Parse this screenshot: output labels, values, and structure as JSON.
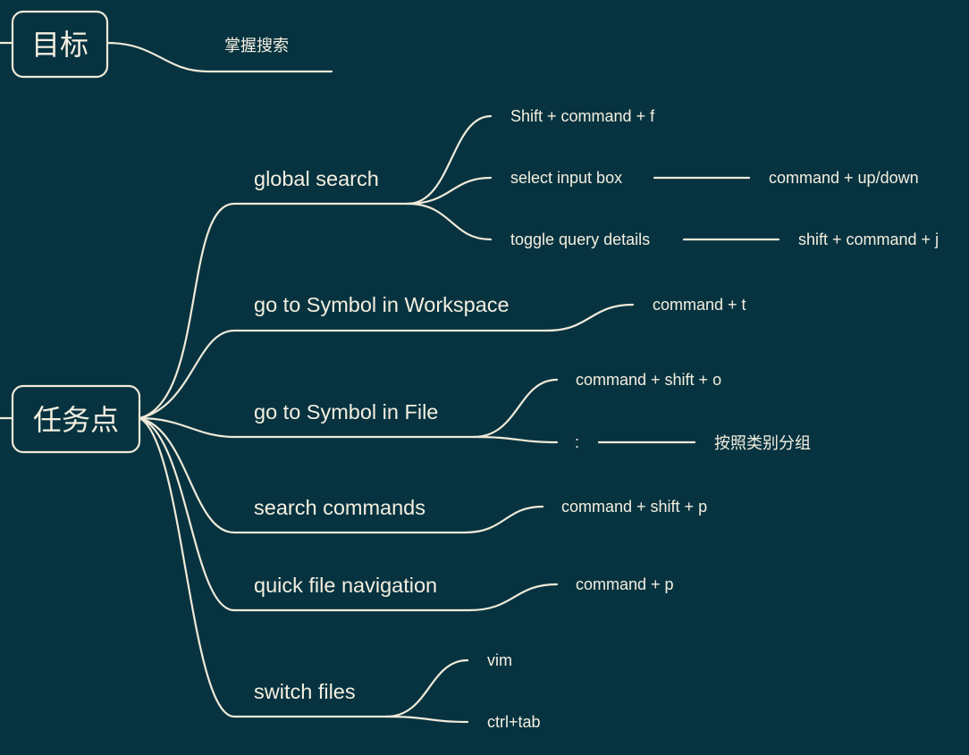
{
  "goal": {
    "root": "目标",
    "branch": "掌握搜索"
  },
  "tasks": {
    "root": "任务点",
    "global_search": {
      "label": "global search",
      "shift_command_f": "Shift + command + f",
      "select_input_box": "select input box",
      "select_input_box_shortcut": "command + up/down",
      "toggle_query_details": "toggle query details",
      "toggle_query_details_shortcut": "shift + command + j"
    },
    "symbol_workspace": {
      "label": "go to Symbol in Workspace",
      "shortcut": "command  + t"
    },
    "symbol_file": {
      "label": "go to Symbol in File",
      "shortcut": "command + shift + o",
      "colon": ":",
      "colon_note": "按照类别分组"
    },
    "search_commands": {
      "label": "search commands",
      "shortcut": "command + shift + p"
    },
    "quick_file_navigation": {
      "label": "quick file navigation",
      "shortcut": "command + p"
    },
    "switch_files": {
      "label": "switch files",
      "vim": "vim",
      "ctrl_tab": "ctrl+tab"
    }
  },
  "colors": {
    "background": "#073340",
    "line": "#f0ead8",
    "text": "#f4efe0"
  }
}
